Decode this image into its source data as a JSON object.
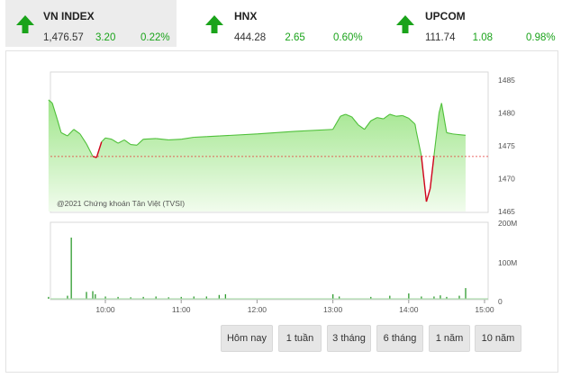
{
  "indices": [
    {
      "name": "VN INDEX",
      "price": "1,476.57",
      "change": "3.20",
      "percent": "0.22%",
      "direction_icon": "arrow-up-icon",
      "active": true
    },
    {
      "name": "HNX",
      "price": "444.28",
      "change": "2.65",
      "percent": "0.60%",
      "direction_icon": "arrow-up-icon",
      "active": false
    },
    {
      "name": "UPCOM",
      "price": "111.74",
      "change": "1.08",
      "percent": "0.98%",
      "direction_icon": "arrow-up-icon",
      "active": false
    }
  ],
  "colors": {
    "up": "#1aa31a",
    "down": "#d0021b",
    "area_top": "#9fe58a",
    "area_bottom": "#f1fced",
    "reference_line": "#e53935",
    "volume_bar": "#2e9b2e"
  },
  "chart": {
    "copyright": "@2021 Chứng khoán Tân Việt (TVSI)",
    "reference_price": 1473.37
  },
  "chart_data": [
    {
      "type": "area",
      "title": "",
      "ylim": [
        1465,
        1485
      ],
      "y_ticks": [
        "1485",
        "1480",
        "1475",
        "1470",
        "1465"
      ],
      "x_ticks": [
        "10:00",
        "11:00",
        "12:00",
        "13:00",
        "14:00",
        "15:00"
      ],
      "reference_value": 1473.37,
      "series": [
        {
          "x": [
            "09:15",
            "09:18",
            "09:22",
            "09:25",
            "09:30",
            "09:35",
            "09:40",
            "09:45",
            "09:50",
            "09:53",
            "09:57",
            "10:00",
            "10:05",
            "10:10",
            "10:15",
            "10:20",
            "10:25",
            "10:30",
            "10:40",
            "10:50",
            "11:00",
            "11:10",
            "11:20",
            "11:30",
            "12:00",
            "12:30",
            "13:00",
            "13:03",
            "13:06",
            "13:10",
            "13:15",
            "13:20",
            "13:25",
            "13:30",
            "13:35",
            "13:40",
            "13:45",
            "13:50",
            "13:55",
            "14:00",
            "14:05",
            "14:06",
            "14:10",
            "14:12",
            "14:14",
            "14:17",
            "14:20",
            "14:24",
            "14:26",
            "14:30",
            "14:35",
            "14:45"
          ],
          "values": [
            1482.0,
            1481.5,
            1479.0,
            1477.0,
            1476.5,
            1477.5,
            1476.8,
            1475.3,
            1473.4,
            1473.2,
            1475.6,
            1476.2,
            1476.0,
            1475.4,
            1475.9,
            1475.2,
            1475.1,
            1476.0,
            1476.1,
            1475.9,
            1476.0,
            1476.3,
            1476.4,
            1476.5,
            1476.8,
            1477.2,
            1477.5,
            1478.5,
            1479.5,
            1479.8,
            1479.4,
            1478.2,
            1477.5,
            1478.8,
            1479.3,
            1479.1,
            1479.8,
            1479.5,
            1479.6,
            1479.2,
            1478.3,
            1477.2,
            1473.5,
            1470.0,
            1466.5,
            1468.5,
            1473.5,
            1480.0,
            1481.5,
            1477.0,
            1476.8,
            1476.6
          ]
        }
      ]
    },
    {
      "type": "bar",
      "title": "",
      "ylim": [
        0,
        200
      ],
      "y_ticks": [
        "200M",
        "100M",
        "0"
      ],
      "x_ticks": [
        "10:00",
        "11:00",
        "12:00",
        "13:00",
        "14:00",
        "15:00"
      ],
      "series": [
        {
          "x": [
            "09:15",
            "09:30",
            "09:33",
            "09:45",
            "09:50",
            "09:52",
            "10:00",
            "10:10",
            "10:20",
            "10:30",
            "10:40",
            "10:50",
            "11:00",
            "11:10",
            "11:20",
            "11:30",
            "11:35",
            "13:00",
            "13:05",
            "13:30",
            "13:45",
            "14:00",
            "14:10",
            "14:20",
            "14:25",
            "14:30",
            "14:40",
            "14:45"
          ],
          "values": [
            5,
            8,
            160,
            18,
            20,
            12,
            6,
            5,
            4,
            5,
            6,
            4,
            5,
            6,
            6,
            10,
            12,
            12,
            6,
            5,
            8,
            14,
            6,
            6,
            9,
            5,
            8,
            28
          ]
        }
      ],
      "unit": "M"
    }
  ],
  "range_buttons": [
    "Hôm nay",
    "1 tuần",
    "3 tháng",
    "6 tháng",
    "1 năm",
    "10 năm"
  ]
}
